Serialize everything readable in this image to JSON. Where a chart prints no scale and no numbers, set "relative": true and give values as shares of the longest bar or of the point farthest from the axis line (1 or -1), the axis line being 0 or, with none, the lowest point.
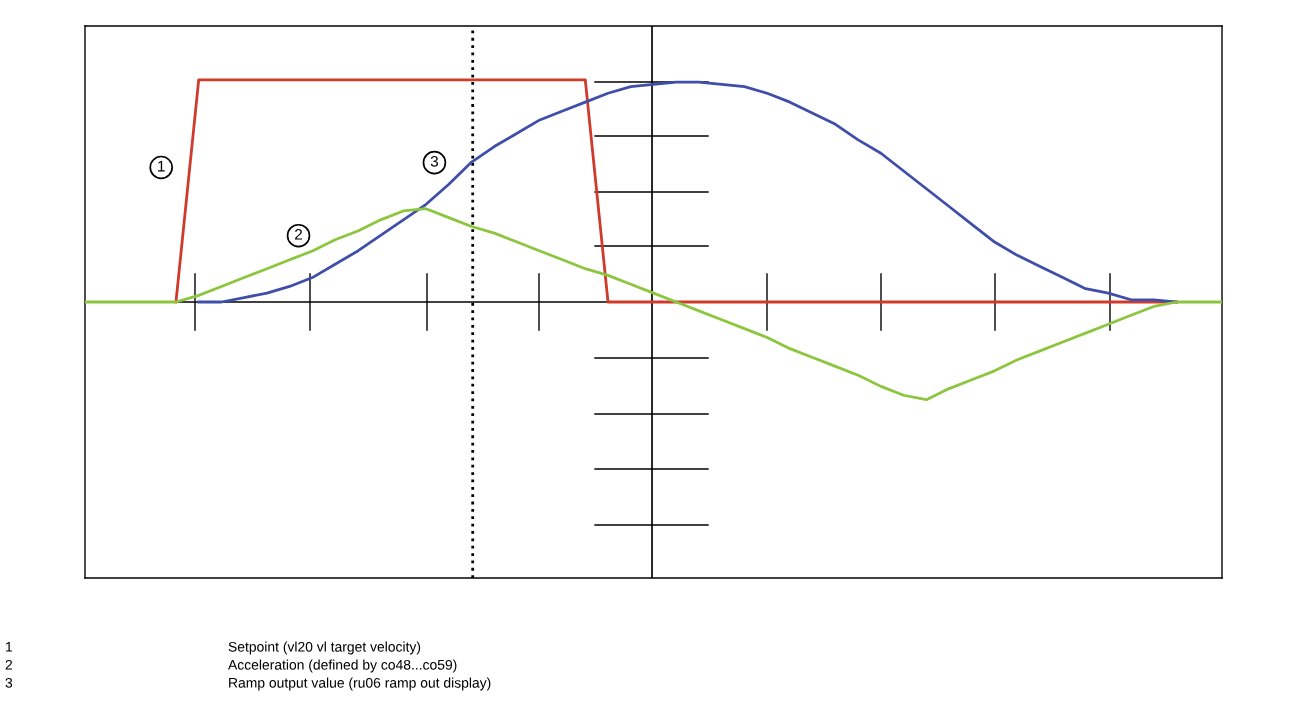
{
  "chart_data": {
    "type": "line",
    "relative": true,
    "legend": false,
    "marker": "none",
    "line_style": "solid",
    "categories": [
      null,
      null,
      null,
      null,
      null,
      null,
      null,
      null,
      null,
      null,
      null,
      null,
      null,
      null,
      null,
      null,
      null,
      null,
      null,
      null,
      null,
      null,
      null,
      null,
      null,
      null,
      null,
      null,
      null,
      null,
      null,
      null,
      null,
      null,
      null,
      null,
      null,
      null,
      null,
      null,
      null,
      null,
      null,
      null,
      null,
      null,
      null,
      null,
      null,
      null,
      null
    ],
    "series": [
      {
        "name": "1",
        "color": "#d03a2a",
        "values": [
          null,
          null,
          null,
          null,
          0,
          1,
          1,
          1,
          1,
          1,
          1,
          1,
          1,
          1,
          1,
          1,
          1,
          1,
          1,
          1,
          1,
          1,
          1,
          0,
          0,
          0,
          0,
          0,
          0,
          0,
          0,
          0,
          0,
          0,
          0,
          0,
          0,
          0,
          0,
          0,
          0,
          0,
          0,
          0,
          0,
          0,
          0,
          0,
          0,
          null,
          null
        ]
      },
      {
        "name": "3",
        "color": "#3f4ea8",
        "values": [
          null,
          null,
          null,
          null,
          null,
          0,
          0,
          0.02,
          0.04,
          0.07,
          0.11,
          0.17,
          0.23,
          0.3,
          0.37,
          0.44,
          0.53,
          0.63,
          0.7,
          0.76,
          0.82,
          0.86,
          0.9,
          0.94,
          0.97,
          0.98,
          0.99,
          0.99,
          0.98,
          0.97,
          0.94,
          0.9,
          0.85,
          0.8,
          0.73,
          0.67,
          0.59,
          0.51,
          0.43,
          0.35,
          0.27,
          0.21,
          0.16,
          0.11,
          0.06,
          0.04,
          0.01,
          0.01,
          0,
          null,
          null
        ]
      },
      {
        "name": "2",
        "color": "#8cc63f",
        "values": [
          0,
          0,
          0,
          0,
          0,
          0.03,
          0.07,
          0.11,
          0.15,
          0.19,
          0.23,
          0.28,
          0.32,
          0.37,
          0.41,
          0.42,
          0.38,
          0.34,
          0.31,
          0.27,
          0.23,
          0.19,
          0.15,
          0.12,
          0.08,
          0.04,
          0.0,
          -0.04,
          -0.08,
          -0.12,
          -0.16,
          -0.21,
          -0.25,
          -0.29,
          -0.33,
          -0.38,
          -0.42,
          -0.44,
          -0.39,
          -0.35,
          -0.31,
          -0.26,
          -0.22,
          -0.18,
          -0.14,
          -0.1,
          -0.06,
          -0.02,
          0,
          0,
          0
        ]
      }
    ],
    "annotations": [
      "1",
      "Setpoint (vl20 vl target velocity)",
      "2",
      "Acceleration (defined by co48...co59)",
      "3",
      "Ramp output value (ru06 ramp out display)"
    ]
  }
}
